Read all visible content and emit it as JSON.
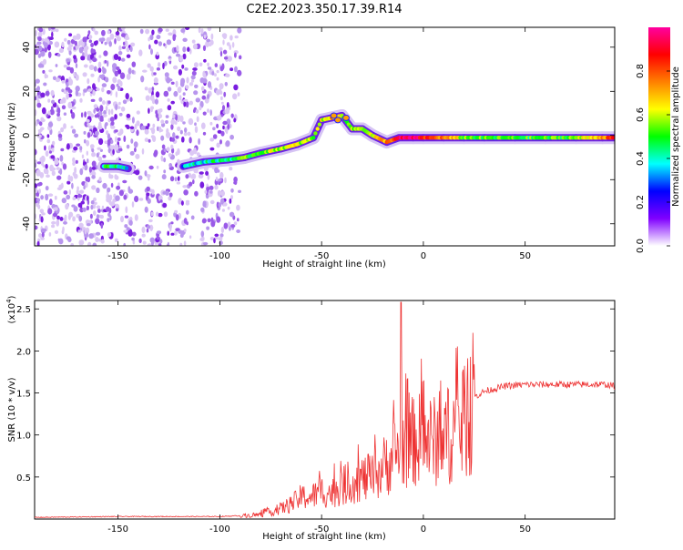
{
  "title": "C2E2.2023.350.17.39.R14",
  "chart_data": [
    {
      "type": "heatmap",
      "title": "C2E2.2023.350.17.39.R14",
      "xlabel": "Height of straight line (km)",
      "ylabel": "Frequency (Hz)",
      "xlim": [
        -191,
        94
      ],
      "ylim": [
        -50,
        49
      ],
      "xticks": [
        -150,
        -100,
        -50,
        0,
        50
      ],
      "yticks": [
        -40,
        -20,
        0,
        20,
        40
      ],
      "colorbar": {
        "label": "Normalized spectral amplitude",
        "range": [
          0,
          1
        ],
        "ticks": [
          "0.0",
          "0.2",
          "0.4",
          "0.6",
          "0.8"
        ],
        "colors": [
          "#ffffff",
          "#8000ff",
          "#0000ff",
          "#00ffff",
          "#00ff00",
          "#ffff00",
          "#ff8000",
          "#ff0000",
          "#ff00a0"
        ]
      },
      "noise_region_km": [
        -191,
        -90
      ],
      "signal_track": [
        {
          "x": -157,
          "freq": -14,
          "amp": 0.45
        },
        {
          "x": -150,
          "freq": -14,
          "amp": 0.45
        },
        {
          "x": -145,
          "freq": -15,
          "amp": 0.35
        },
        {
          "x": -118,
          "freq": -14,
          "amp": 0.35
        },
        {
          "x": -108,
          "freq": -12,
          "amp": 0.4
        },
        {
          "x": -96,
          "freq": -11,
          "amp": 0.45
        },
        {
          "x": -88,
          "freq": -10,
          "amp": 0.5
        },
        {
          "x": -80,
          "freq": -8,
          "amp": 0.55
        },
        {
          "x": -70,
          "freq": -6,
          "amp": 0.6
        },
        {
          "x": -62,
          "freq": -4,
          "amp": 0.6
        },
        {
          "x": -54,
          "freq": -1,
          "amp": 0.55
        },
        {
          "x": -50,
          "freq": 7,
          "amp": 0.6
        },
        {
          "x": -45,
          "freq": 8,
          "amp": 0.7
        },
        {
          "x": -40,
          "freq": 9,
          "amp": 0.6
        },
        {
          "x": -35,
          "freq": 3,
          "amp": 0.55
        },
        {
          "x": -30,
          "freq": 3,
          "amp": 0.6
        },
        {
          "x": -25,
          "freq": 0,
          "amp": 0.6
        },
        {
          "x": -18,
          "freq": -3,
          "amp": 0.75
        },
        {
          "x": -12,
          "freq": -1,
          "amp": 0.9
        },
        {
          "x": -5,
          "freq": -1,
          "amp": 0.95
        },
        {
          "x": 0,
          "freq": -1,
          "amp": 0.85
        },
        {
          "x": 10,
          "freq": -1,
          "amp": 0.75
        },
        {
          "x": 20,
          "freq": -1,
          "amp": 0.55
        },
        {
          "x": 30,
          "freq": -1,
          "amp": 0.5
        },
        {
          "x": 45,
          "freq": -1,
          "amp": 0.5
        },
        {
          "x": 60,
          "freq": -1,
          "amp": 0.5
        },
        {
          "x": 75,
          "freq": -1,
          "amp": 0.55
        },
        {
          "x": 88,
          "freq": -1,
          "amp": 0.75
        },
        {
          "x": 94,
          "freq": -1,
          "amp": 0.8
        }
      ]
    },
    {
      "type": "line",
      "xlabel": "Height of straight line (km)",
      "ylabel": "SNR (10 * v/v)",
      "y_exponent": "(x10",
      "y_exponent_power": "4",
      "y_exponent_close": ")",
      "xlim": [
        -191,
        94
      ],
      "ylim": [
        0,
        2.6
      ],
      "xticks": [
        -150,
        -100,
        -50,
        0,
        50
      ],
      "yticks": [
        "0.5",
        "1.0",
        "1.5",
        "2.0",
        "2.5"
      ],
      "series": [
        {
          "name": "SNR",
          "color": "#ee3333",
          "x": [
            -191,
            -150,
            -100,
            -90,
            -80,
            -72,
            -65,
            -60,
            -55,
            -50,
            -45,
            -40,
            -35,
            -30,
            -25,
            -20,
            -15,
            -12,
            -10,
            -5,
            0,
            5,
            10,
            15,
            20,
            25,
            30,
            40,
            50,
            60,
            70,
            80,
            90,
            94
          ],
          "y": [
            0.02,
            0.03,
            0.03,
            0.04,
            0.06,
            0.12,
            0.2,
            0.3,
            0.3,
            0.38,
            0.35,
            0.45,
            0.5,
            0.55,
            0.55,
            0.7,
            0.85,
            0.95,
            1.0,
            1.05,
            1.1,
            1.05,
            1.1,
            1.2,
            1.3,
            1.45,
            1.52,
            1.58,
            1.6,
            1.6,
            1.6,
            1.6,
            1.6,
            1.58
          ],
          "peak": {
            "x": -11,
            "y": 2.58
          }
        }
      ]
    }
  ]
}
